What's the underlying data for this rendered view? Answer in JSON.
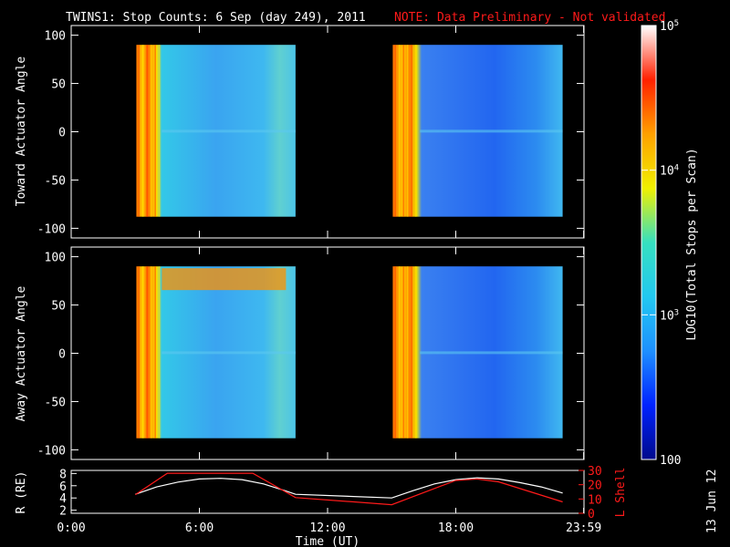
{
  "header": {
    "title": "TWINS1: Stop Counts:  6 Sep (day 249), 2011",
    "note": "NOTE: Data Preliminary - Not validated"
  },
  "datestamp": "13 Jun 12",
  "colorbar": {
    "label": "LOG10(Total Stops per Scan)",
    "ticks": [
      {
        "text": "10",
        "sup": "5",
        "value": 100000
      },
      {
        "text": "10",
        "sup": "4",
        "value": 10000
      },
      {
        "text": "10",
        "sup": "3",
        "value": 1000
      },
      {
        "text": "100",
        "sup": "",
        "value": 100
      }
    ],
    "range": [
      100,
      100000
    ],
    "colors": [
      "#000a8c",
      "#0022ff",
      "#1e90ff",
      "#22c8f0",
      "#36e0c0",
      "#f0f000",
      "#ffa000",
      "#ff2000",
      "#ffffff"
    ]
  },
  "chart_data": [
    {
      "type": "heatmap",
      "ylabel": "Toward Actuator Angle",
      "ylim": [
        -110,
        110
      ],
      "yticks": [
        100,
        50,
        0,
        -50,
        -100
      ],
      "xlim_hours": [
        0,
        24
      ],
      "data_windows_hours": [
        [
          3.05,
          10.5
        ],
        [
          15.05,
          23.0
        ]
      ],
      "angle_range": [
        -88,
        90
      ],
      "grid": false
    },
    {
      "type": "heatmap",
      "ylabel": "Away Actuator Angle",
      "ylim": [
        -110,
        110
      ],
      "yticks": [
        100,
        50,
        0,
        -50,
        -100
      ],
      "xlim_hours": [
        0,
        24
      ],
      "data_windows_hours": [
        [
          3.05,
          10.5
        ],
        [
          15.05,
          23.0
        ]
      ],
      "angle_range": [
        -88,
        90
      ],
      "grid": false
    },
    {
      "type": "line",
      "xlabel": "Time (UT)",
      "xticks": [
        "0:00",
        "6:00",
        "12:00",
        "18:00",
        "23:59"
      ],
      "xtick_hours": [
        0,
        6,
        12,
        18,
        23.983
      ],
      "ylabel_left": "R (RE)",
      "ylabel_right": "L Shell",
      "left_ylim": [
        1.5,
        8.5
      ],
      "left_yticks": [
        8,
        6,
        4,
        2
      ],
      "right_ylim": [
        0,
        30
      ],
      "right_yticks": [
        30,
        20,
        10,
        0
      ],
      "right_tick_labels": [
        "30",
        "20",
        "10",
        "0"
      ],
      "series": [
        {
          "name": "R (RE)",
          "color": "#ffffff",
          "x": [
            3,
            4,
            5,
            6,
            7,
            8,
            9,
            10,
            10.5,
            15,
            16,
            17,
            18,
            19,
            20,
            21,
            22,
            23
          ],
          "y": [
            4.6,
            5.8,
            6.6,
            7.1,
            7.2,
            7.0,
            6.3,
            5.2,
            4.6,
            4.0,
            5.2,
            6.3,
            7.0,
            7.3,
            7.1,
            6.5,
            5.8,
            4.8
          ]
        },
        {
          "name": "L Shell",
          "color": "#ff1a1a",
          "x": [
            3,
            4.5,
            8.5,
            10.5,
            15,
            18,
            19,
            20,
            23
          ],
          "y": [
            13,
            28,
            28,
            11,
            6,
            23,
            24,
            22,
            8
          ]
        }
      ]
    }
  ]
}
